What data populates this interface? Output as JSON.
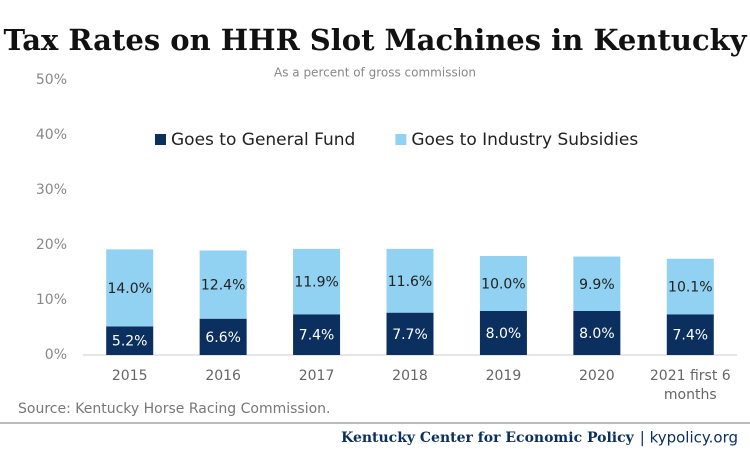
{
  "chart_data": {
    "type": "stacked-bar",
    "title": "Tax Rates on HHR Slot Machines in Kentucky",
    "subtitle": "As a percent of gross commission",
    "categories": [
      "2015",
      "2016",
      "2017",
      "2018",
      "2019",
      "2020",
      "2021 first 6 months"
    ],
    "series": [
      {
        "name": "Goes to General Fund",
        "color": "#0b2f5e",
        "values": [
          5.2,
          6.6,
          7.4,
          7.7,
          8.0,
          8.0,
          7.4
        ],
        "value_labels": [
          "5.2%",
          "6.6%",
          "7.4%",
          "7.7%",
          "8.0%",
          "8.0%",
          "7.4%"
        ]
      },
      {
        "name": "Goes to Industry Subsidies",
        "color": "#91d1f1",
        "values": [
          14.0,
          12.4,
          11.9,
          11.6,
          10.0,
          9.9,
          10.1
        ],
        "value_labels": [
          "14.0%",
          "12.4%",
          "11.9%",
          "11.6%",
          "10.0%",
          "9.9%",
          "10.1%"
        ]
      }
    ],
    "ylim": [
      0,
      50
    ],
    "yticks": [
      {
        "value": 0,
        "label": "0%"
      },
      {
        "value": 10,
        "label": "10%"
      },
      {
        "value": 20,
        "label": "20%"
      },
      {
        "value": 30,
        "label": "30%"
      },
      {
        "value": 40,
        "label": "40%"
      },
      {
        "value": 50,
        "label": "50%"
      }
    ],
    "grid": false,
    "source": "Source: Kentucky Horse Racing Commission."
  },
  "footer": {
    "org": "Kentucky Center for Economic Policy",
    "site": "| kypolicy.org"
  }
}
